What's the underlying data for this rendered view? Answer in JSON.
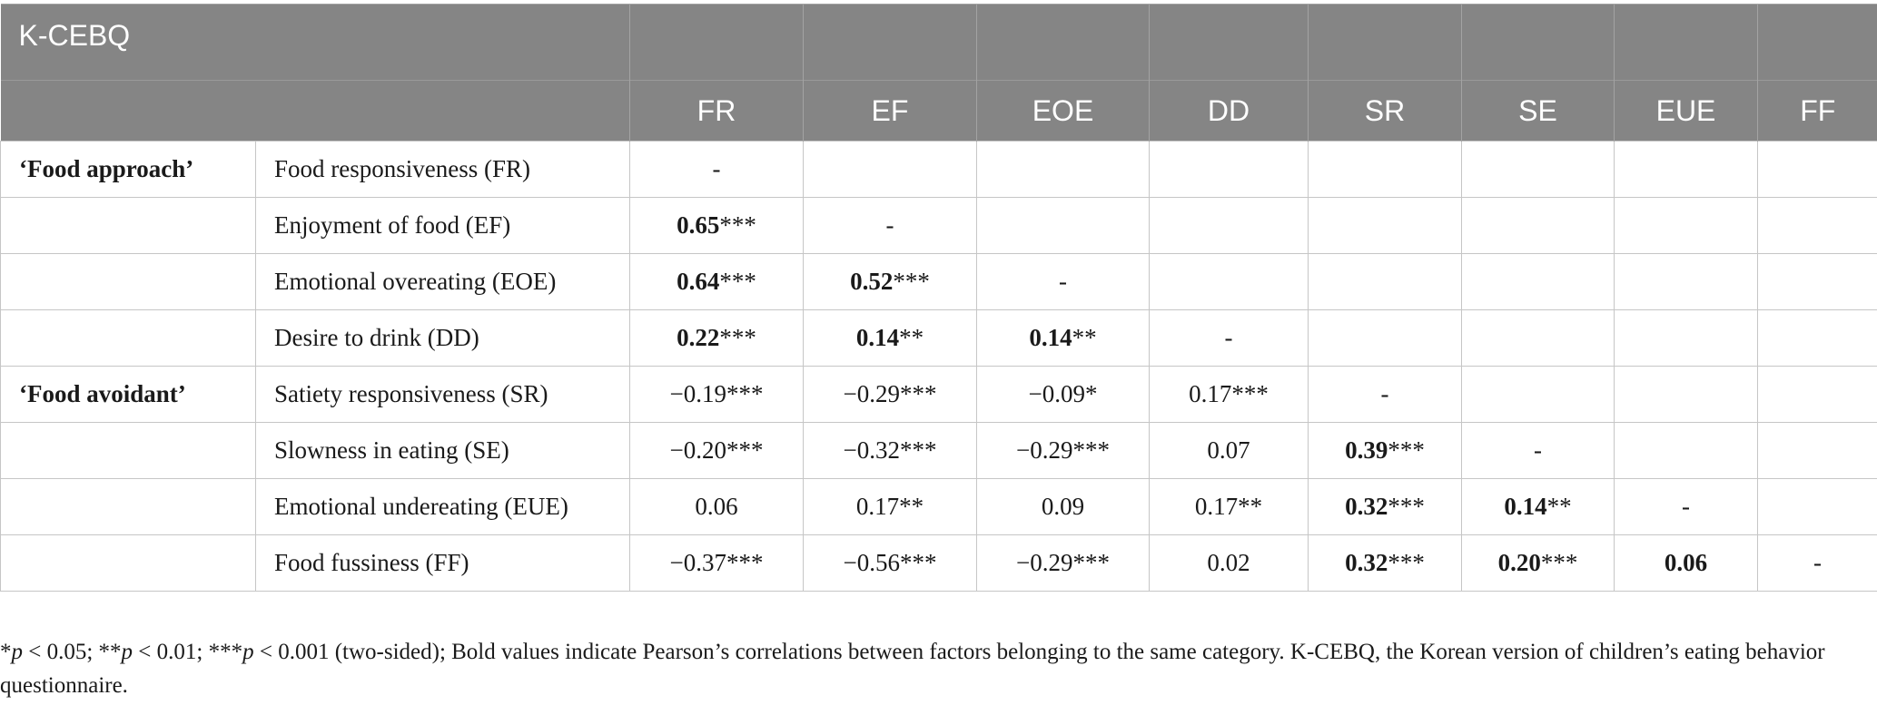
{
  "table": {
    "title": "K-CEBQ",
    "columns": [
      "FR",
      "EF",
      "EOE",
      "DD",
      "SR",
      "SE",
      "EUE",
      "FF"
    ],
    "rows": [
      {
        "category": "‘Food approach’",
        "factor": "Food responsiveness (FR)",
        "cells": [
          {
            "v": "-",
            "b": false
          },
          {
            "v": "",
            "b": false
          },
          {
            "v": "",
            "b": false
          },
          {
            "v": "",
            "b": false
          },
          {
            "v": "",
            "b": false
          },
          {
            "v": "",
            "b": false
          },
          {
            "v": "",
            "b": false
          },
          {
            "v": "",
            "b": false
          }
        ]
      },
      {
        "category": "",
        "factor": "Enjoyment of food (EF)",
        "cells": [
          {
            "v": "0.65",
            "s": "***",
            "b": true
          },
          {
            "v": "-",
            "b": false
          },
          {
            "v": "",
            "b": false
          },
          {
            "v": "",
            "b": false
          },
          {
            "v": "",
            "b": false
          },
          {
            "v": "",
            "b": false
          },
          {
            "v": "",
            "b": false
          },
          {
            "v": "",
            "b": false
          }
        ]
      },
      {
        "category": "",
        "factor": "Emotional overeating (EOE)",
        "cells": [
          {
            "v": "0.64",
            "s": "***",
            "b": true
          },
          {
            "v": "0.52",
            "s": "***",
            "b": true
          },
          {
            "v": "-",
            "b": false
          },
          {
            "v": "",
            "b": false
          },
          {
            "v": "",
            "b": false
          },
          {
            "v": "",
            "b": false
          },
          {
            "v": "",
            "b": false
          },
          {
            "v": "",
            "b": false
          }
        ]
      },
      {
        "category": "",
        "factor": "Desire to drink (DD)",
        "cells": [
          {
            "v": "0.22",
            "s": "***",
            "b": true
          },
          {
            "v": "0.14",
            "s": "**",
            "b": true
          },
          {
            "v": "0.14",
            "s": "**",
            "b": true
          },
          {
            "v": "-",
            "b": false
          },
          {
            "v": "",
            "b": false
          },
          {
            "v": "",
            "b": false
          },
          {
            "v": "",
            "b": false
          },
          {
            "v": "",
            "b": false
          }
        ]
      },
      {
        "category": "‘Food avoidant’",
        "factor": "Satiety responsiveness (SR)",
        "cells": [
          {
            "v": "−0.19",
            "s": "***",
            "b": false
          },
          {
            "v": "−0.29",
            "s": "***",
            "b": false
          },
          {
            "v": "−0.09",
            "s": "*",
            "b": false
          },
          {
            "v": "0.17",
            "s": "***",
            "b": false
          },
          {
            "v": "-",
            "b": false
          },
          {
            "v": "",
            "b": false
          },
          {
            "v": "",
            "b": false
          },
          {
            "v": "",
            "b": false
          }
        ]
      },
      {
        "category": "",
        "factor": "Slowness in eating (SE)",
        "cells": [
          {
            "v": "−0.20",
            "s": "***",
            "b": false
          },
          {
            "v": "−0.32",
            "s": "***",
            "b": false
          },
          {
            "v": "−0.29",
            "s": "***",
            "b": false
          },
          {
            "v": "0.07",
            "b": false
          },
          {
            "v": "0.39",
            "s": "***",
            "b": true
          },
          {
            "v": "-",
            "b": false
          },
          {
            "v": "",
            "b": false
          },
          {
            "v": "",
            "b": false
          }
        ]
      },
      {
        "category": "",
        "factor": "Emotional undereating (EUE)",
        "cells": [
          {
            "v": "0.06",
            "b": false
          },
          {
            "v": "0.17",
            "s": "**",
            "b": false
          },
          {
            "v": "0.09",
            "b": false
          },
          {
            "v": "0.17",
            "s": "**",
            "b": false
          },
          {
            "v": "0.32",
            "s": "***",
            "b": true
          },
          {
            "v": "0.14",
            "s": "**",
            "b": true
          },
          {
            "v": "-",
            "b": false
          },
          {
            "v": "",
            "b": false
          }
        ]
      },
      {
        "category": "",
        "factor": "Food fussiness (FF)",
        "cells": [
          {
            "v": "−0.37",
            "s": "***",
            "b": false
          },
          {
            "v": "−0.56",
            "s": "***",
            "b": false
          },
          {
            "v": "−0.29",
            "s": "***",
            "b": false
          },
          {
            "v": "0.02",
            "b": false
          },
          {
            "v": "0.32",
            "s": "***",
            "b": true
          },
          {
            "v": "0.20",
            "s": "***",
            "b": true
          },
          {
            "v": "0.06",
            "b": true
          },
          {
            "v": "-",
            "b": false
          }
        ]
      }
    ]
  },
  "footnote": {
    "sig1_star": "*",
    "sig1_text": " < 0.05; ",
    "sig2_star": "**",
    "sig2_text": " < 0.01; ",
    "sig3_star": "***",
    "sig3_text": " < 0.001 (two-sided); Bold values indicate Pearson’s correlations between factors belonging to the same category. K-CEBQ, the Korean version of children’s eating behavior questionnaire.",
    "p_symbol": "p"
  }
}
